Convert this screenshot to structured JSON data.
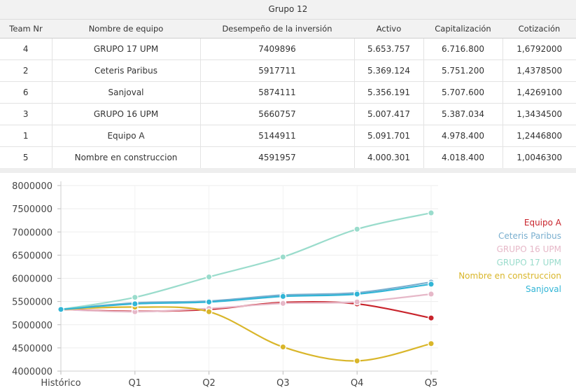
{
  "table": {
    "title": "Grupo 12",
    "columns": [
      "Team Nr",
      "Nombre de equipo",
      "Desempeño de la inversión",
      "Activo",
      "Capitalización",
      "Cotización"
    ],
    "rows": [
      [
        "4",
        "GRUPO 17 UPM",
        "7409896",
        "5.653.757",
        "6.716.800",
        "1,6792000"
      ],
      [
        "2",
        "Ceteris Paribus",
        "5917711",
        "5.369.124",
        "5.751.200",
        "1,4378500"
      ],
      [
        "6",
        "Sanjoval",
        "5874111",
        "5.356.191",
        "5.707.600",
        "1,4269100"
      ],
      [
        "3",
        "GRUPO 16 UPM",
        "5660757",
        "5.007.417",
        "5.387.034",
        "1,3434500"
      ],
      [
        "1",
        "Equipo A",
        "5144911",
        "5.091.701",
        "4.978.400",
        "1,2446800"
      ],
      [
        "5",
        "Nombre en construccion",
        "4591957",
        "4.000.301",
        "4.018.400",
        "1,0046300"
      ]
    ]
  },
  "chart_data": {
    "type": "line",
    "categories": [
      "Histórico",
      "Q1",
      "Q2",
      "Q3",
      "Q4",
      "Q5"
    ],
    "yticks": [
      "4000000",
      "4500000",
      "5000000",
      "5500000",
      "6000000",
      "6500000",
      "7000000",
      "7500000",
      "8000000"
    ],
    "ylim": [
      4000000,
      8000000
    ],
    "legend_position": "right",
    "series": [
      {
        "name": "Equipo A",
        "color": "#c8232b",
        "values": [
          5330000,
          5290000,
          5330000,
          5480000,
          5450000,
          5144911
        ]
      },
      {
        "name": "Ceteris Paribus",
        "color": "#7aafcf",
        "values": [
          5330000,
          5470000,
          5510000,
          5640000,
          5690000,
          5917711
        ]
      },
      {
        "name": "GRUPO 16 UPM",
        "color": "#e6b8c8",
        "values": [
          5330000,
          5280000,
          5350000,
          5460000,
          5490000,
          5660757
        ]
      },
      {
        "name": "GRUPO 17 UPM",
        "color": "#9adccc",
        "values": [
          5330000,
          5590000,
          6030000,
          6460000,
          7060000,
          7409896
        ]
      },
      {
        "name": "Nombre en construccion",
        "color": "#d9b62a",
        "values": [
          5330000,
          5380000,
          5280000,
          4520000,
          4220000,
          4591957
        ]
      },
      {
        "name": "Sanjoval",
        "color": "#31b5d6",
        "values": [
          5330000,
          5450000,
          5490000,
          5610000,
          5660000,
          5874111
        ]
      }
    ]
  }
}
